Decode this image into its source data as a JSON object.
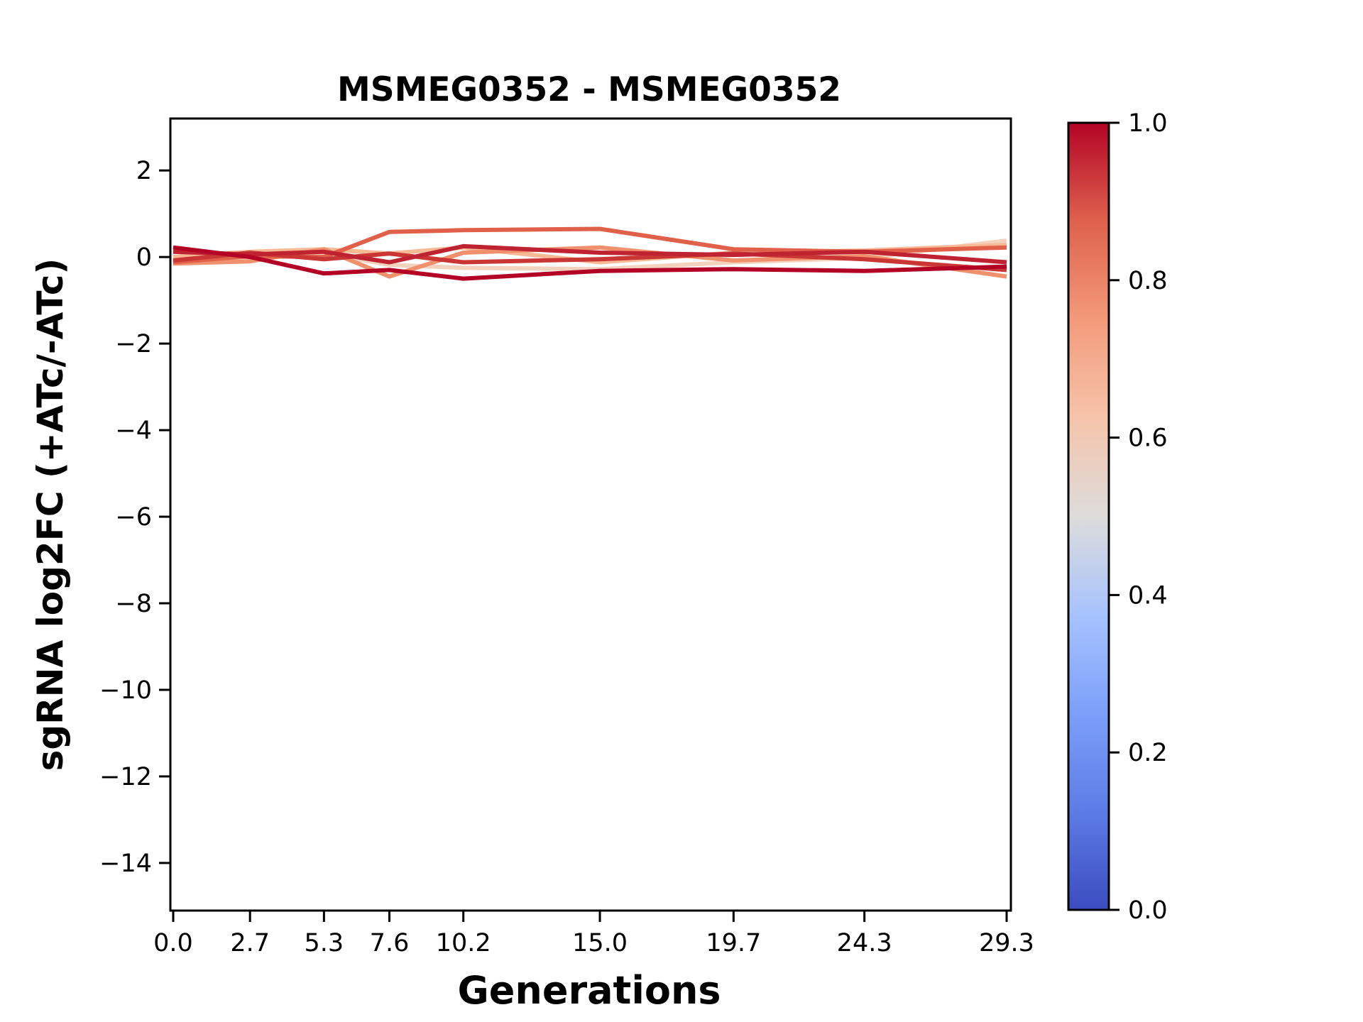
{
  "figure": {
    "background": "#ffffff",
    "axis_color": "#000000"
  },
  "chart_data": {
    "type": "line",
    "title": "MSMEG0352 - MSMEG0352",
    "xlabel": "Generations",
    "ylabel": "sgRNA log2FC (+ATc/-ATc)",
    "x": [
      0.0,
      2.7,
      5.3,
      7.6,
      10.2,
      15.0,
      19.7,
      24.3,
      29.3
    ],
    "xtick_labels": [
      "0.0",
      "2.7",
      "5.3",
      "7.6",
      "10.2",
      "15.0",
      "19.7",
      "24.3",
      "29.3"
    ],
    "ytick_values": [
      2,
      0,
      -2,
      -4,
      -6,
      -8,
      -10,
      -12,
      -14
    ],
    "ytick_labels": [
      "2",
      "0",
      "−2",
      "−4",
      "−6",
      "−8",
      "−10",
      "−12",
      "−14"
    ],
    "xlim": [
      -0.1,
      29.45
    ],
    "ylim": [
      -15.1,
      3.2
    ],
    "grid": false,
    "legend": "none",
    "series": [
      {
        "name": "line-7",
        "colorbar_value_est": 0.58,
        "color": "#f4d3be",
        "values": [
          -0.05,
          -0.03,
          0.08,
          -0.18,
          -0.25,
          -0.28,
          -0.12,
          -0.02,
          0.38
        ]
      },
      {
        "name": "line-6",
        "colorbar_value_est": 0.66,
        "color": "#f8b995",
        "values": [
          0.0,
          0.12,
          0.18,
          0.08,
          0.22,
          -0.12,
          0.1,
          0.15,
          0.28
        ]
      },
      {
        "name": "line-5",
        "colorbar_value_est": 0.75,
        "color": "#f0906c",
        "values": [
          -0.15,
          -0.1,
          0.18,
          -0.45,
          0.1,
          0.22,
          -0.08,
          0.02,
          -0.45
        ]
      },
      {
        "name": "line-4",
        "colorbar_value_est": 0.85,
        "color": "#e0604a",
        "values": [
          -0.12,
          0.02,
          0.0,
          0.58,
          0.62,
          0.65,
          0.18,
          0.12,
          0.22
        ]
      },
      {
        "name": "line-3",
        "colorbar_value_est": 0.94,
        "color": "#c93634",
        "values": [
          -0.08,
          0.1,
          -0.05,
          0.08,
          -0.12,
          -0.05,
          0.08,
          -0.05,
          -0.3
        ]
      },
      {
        "name": "line-2",
        "colorbar_value_est": 0.97,
        "color": "#bf2231",
        "values": [
          0.12,
          0.06,
          0.12,
          -0.12,
          0.25,
          0.1,
          0.05,
          0.12,
          -0.12
        ]
      },
      {
        "name": "line-1",
        "colorbar_value_est": 1.0,
        "color": "#b40426",
        "values": [
          0.22,
          0.0,
          -0.38,
          -0.3,
          -0.5,
          -0.32,
          -0.28,
          -0.32,
          -0.22
        ]
      }
    ],
    "colorbar": {
      "colormap": "coolwarm",
      "range": [
        0.0,
        1.0
      ],
      "tick_labels": [
        "1.0",
        "0.8",
        "0.6",
        "0.4",
        "0.2",
        "0.0"
      ],
      "tick_values": [
        1.0,
        0.8,
        0.6,
        0.4,
        0.2,
        0.0
      ],
      "gradient_stops": [
        {
          "t": 0.0,
          "color": "#3b4cc0"
        },
        {
          "t": 0.125,
          "color": "#5d7ce6"
        },
        {
          "t": 0.25,
          "color": "#7c9ff9"
        },
        {
          "t": 0.375,
          "color": "#a7c3fe"
        },
        {
          "t": 0.5,
          "color": "#dddcdb"
        },
        {
          "t": 0.625,
          "color": "#f5c4aa"
        },
        {
          "t": 0.75,
          "color": "#f49a7b"
        },
        {
          "t": 0.875,
          "color": "#de614d"
        },
        {
          "t": 1.0,
          "color": "#b40426"
        }
      ]
    }
  }
}
